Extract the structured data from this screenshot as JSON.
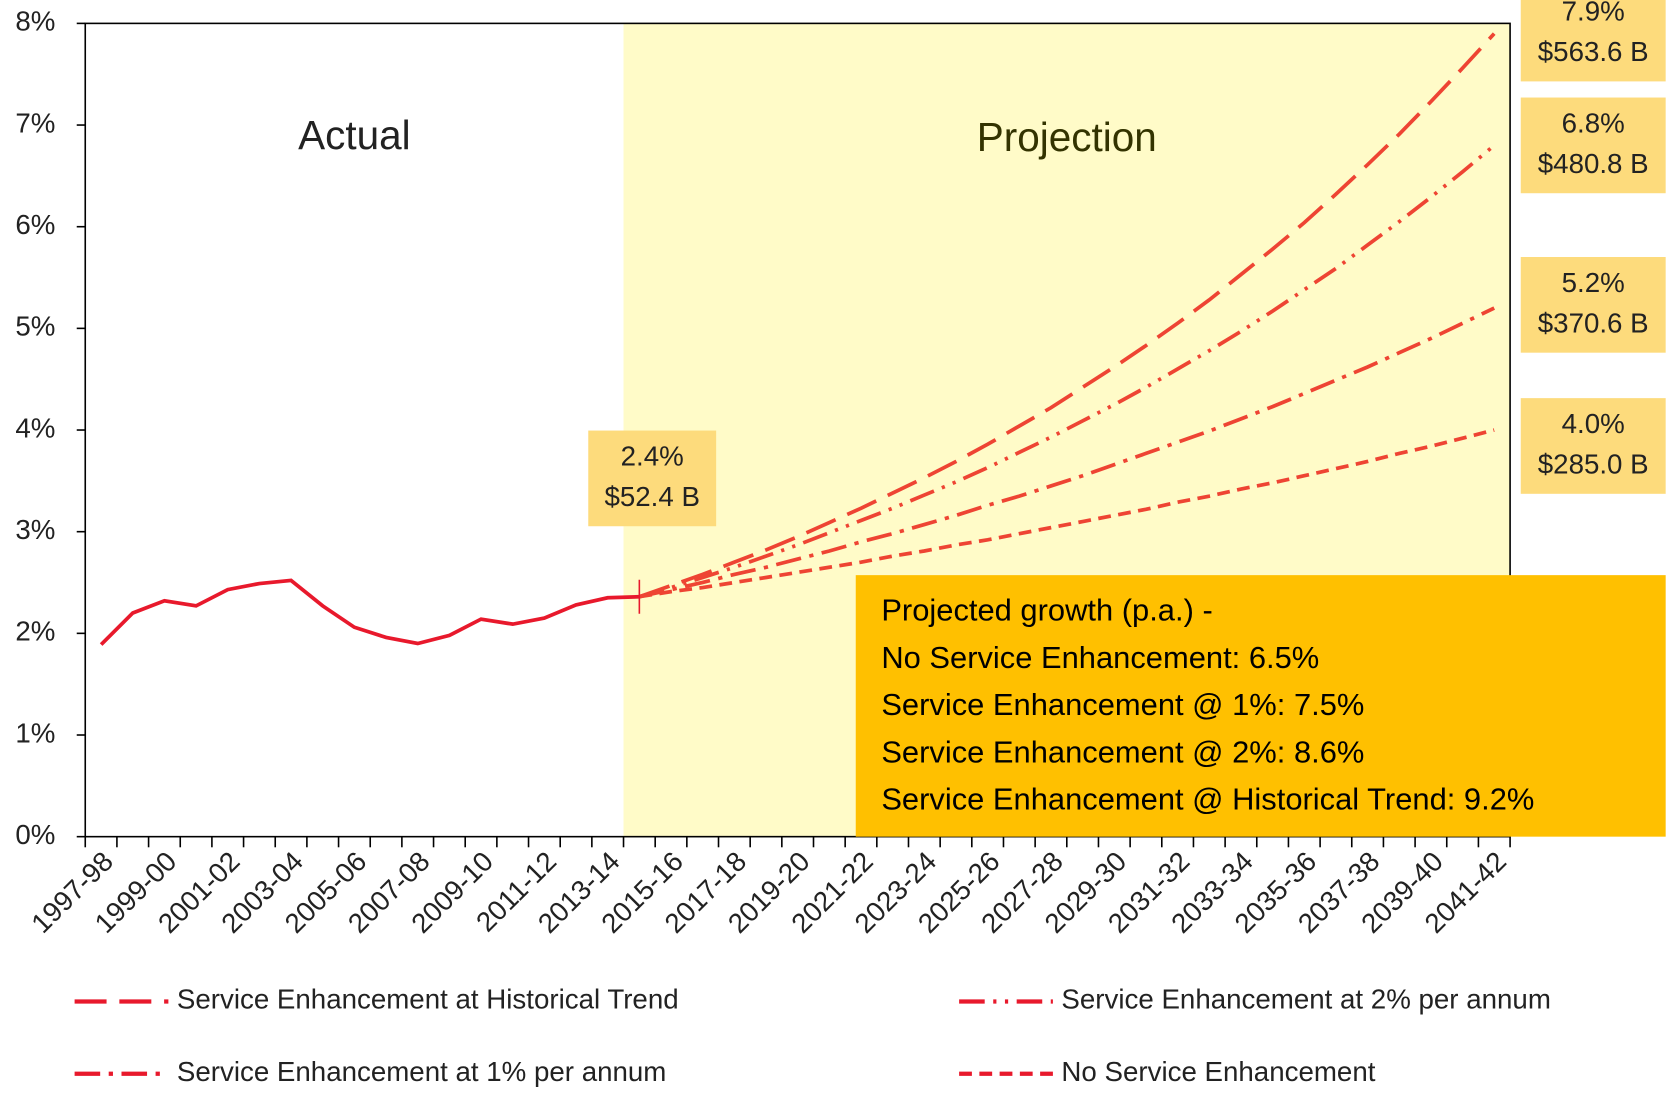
{
  "chart_data": {
    "type": "line",
    "categories": [
      "1997-98",
      null,
      "1999-00",
      null,
      "2001-02",
      null,
      "2003-04",
      null,
      "2005-06",
      null,
      "2007-08",
      null,
      "2009-10",
      null,
      "2011-12",
      null,
      "2013-14",
      null,
      "2015-16",
      null,
      "2017-18",
      null,
      "2019-20",
      null,
      "2021-22",
      null,
      "2023-24",
      null,
      "2025-26",
      null,
      "2027-28",
      null,
      "2029-30",
      null,
      "2031-32",
      null,
      "2033-34",
      null,
      "2035-36",
      null,
      "2037-38",
      null,
      "2039-40",
      null,
      "2041-42"
    ],
    "series": [
      {
        "color": "#e8192c",
        "dash": "solid",
        "values": [
          1.89,
          2.2,
          2.32,
          2.27,
          2.43,
          2.49,
          2.52,
          2.27,
          2.06,
          1.96,
          1.9,
          1.98,
          2.14,
          2.09,
          2.15,
          2.28,
          2.35,
          2.36,
          null,
          null,
          null,
          null,
          null,
          null,
          null,
          null,
          null,
          null,
          null,
          null,
          null,
          null,
          null,
          null,
          null,
          null,
          null,
          null,
          null,
          null,
          null,
          null,
          null,
          null,
          null
        ]
      },
      {
        "name": "Service Enhancement at Historical Trend",
        "color": "#ee4433",
        "dash": "30,12",
        "values": [
          null,
          null,
          null,
          null,
          null,
          null,
          null,
          null,
          null,
          null,
          null,
          null,
          null,
          null,
          null,
          null,
          null,
          2.36,
          2.47,
          2.58,
          2.7,
          2.82,
          2.95,
          3.09,
          3.23,
          3.38,
          3.53,
          3.69,
          3.86,
          4.04,
          4.22,
          4.42,
          4.62,
          4.83,
          5.05,
          5.28,
          5.53,
          5.78,
          6.04,
          6.32,
          6.61,
          6.91,
          7.23,
          7.56,
          7.9
        ]
      },
      {
        "name": "Service Enhancement at 2% per annum",
        "color": "#ee4433",
        "dash": "24,8,3,8,3,8",
        "values": [
          null,
          null,
          null,
          null,
          null,
          null,
          null,
          null,
          null,
          null,
          null,
          null,
          null,
          null,
          null,
          null,
          null,
          2.36,
          2.45,
          2.55,
          2.65,
          2.76,
          2.87,
          2.99,
          3.11,
          3.23,
          3.36,
          3.49,
          3.63,
          3.78,
          3.93,
          4.09,
          4.25,
          4.42,
          4.6,
          4.78,
          4.97,
          5.17,
          5.38,
          5.59,
          5.82,
          6.05,
          6.29,
          6.54,
          6.8
        ]
      },
      {
        "name": "Service Enhancement at 1% per annum",
        "color": "#ee4433",
        "dash": "24,8,4,8",
        "values": [
          null,
          null,
          null,
          null,
          null,
          null,
          null,
          null,
          null,
          null,
          null,
          null,
          null,
          null,
          null,
          null,
          null,
          2.36,
          2.43,
          2.5,
          2.58,
          2.65,
          2.73,
          2.81,
          2.9,
          2.98,
          3.07,
          3.16,
          3.26,
          3.35,
          3.45,
          3.55,
          3.66,
          3.77,
          3.88,
          3.99,
          4.11,
          4.23,
          4.36,
          4.49,
          4.62,
          4.76,
          4.9,
          5.05,
          5.2
        ]
      },
      {
        "name": "No Service Enhancement",
        "color": "#ee4433",
        "dash": "12,7",
        "values": [
          null,
          null,
          null,
          null,
          null,
          null,
          null,
          null,
          null,
          null,
          null,
          null,
          null,
          null,
          null,
          null,
          null,
          2.36,
          2.41,
          2.45,
          2.5,
          2.55,
          2.6,
          2.65,
          2.7,
          2.76,
          2.81,
          2.87,
          2.92,
          2.98,
          3.04,
          3.1,
          3.16,
          3.22,
          3.29,
          3.35,
          3.42,
          3.48,
          3.55,
          3.62,
          3.69,
          3.77,
          3.84,
          3.92,
          4.0
        ]
      }
    ],
    "ylim": [
      0,
      8
    ],
    "yticks": [
      {
        "value": 0,
        "label": "0%"
      },
      {
        "value": 1,
        "label": "1%"
      },
      {
        "value": 2,
        "label": "2%"
      },
      {
        "value": 3,
        "label": "3%"
      },
      {
        "value": 4,
        "label": "4%"
      },
      {
        "value": 5,
        "label": "5%"
      },
      {
        "value": 6,
        "label": "6%"
      },
      {
        "value": 7,
        "label": "7%"
      },
      {
        "value": 8,
        "label": "8%"
      }
    ],
    "regions": [
      "Actual",
      "Projection"
    ],
    "start_label": [
      "2.4%",
      "$52.4 B"
    ],
    "end_labels": [
      [
        "7.9%",
        "$563.6 B"
      ],
      [
        "6.8%",
        "$480.8 B"
      ],
      [
        "5.2%",
        "$370.6 B"
      ],
      [
        "4.0%",
        "$285.0 B"
      ]
    ],
    "note": [
      "Projected growth (p.a.) -",
      "No Service Enhancement: 6.5%",
      "Service Enhancement @ 1%: 7.5%",
      "Service Enhancement @ 2%: 8.6%",
      "Service Enhancement @ Historical Trend: 9.2%"
    ],
    "legend": "bottom"
  }
}
